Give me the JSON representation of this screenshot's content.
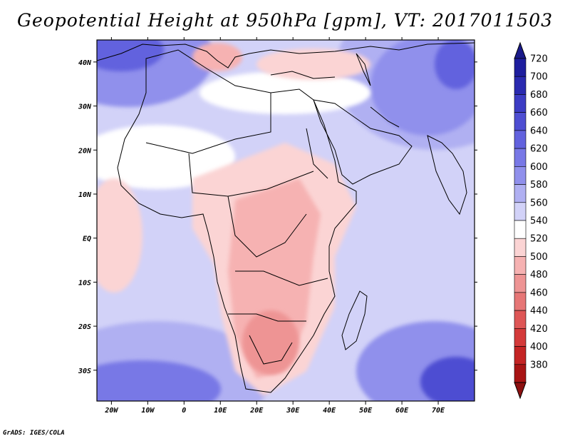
{
  "title": "Geopotential Height at 950hPa [gpm], VT: 2017011503",
  "credit": "GrADS: IGES/COLA",
  "map": {
    "lon_range": [
      -24,
      80
    ],
    "lat_range": [
      -37,
      45
    ],
    "lon_ticks": [
      {
        "value": -20,
        "label": "20W"
      },
      {
        "value": -10,
        "label": "10W"
      },
      {
        "value": 0,
        "label": "0"
      },
      {
        "value": 10,
        "label": "10E"
      },
      {
        "value": 20,
        "label": "20E"
      },
      {
        "value": 30,
        "label": "30E"
      },
      {
        "value": 40,
        "label": "40E"
      },
      {
        "value": 50,
        "label": "50E"
      },
      {
        "value": 60,
        "label": "60E"
      },
      {
        "value": 70,
        "label": "70E"
      }
    ],
    "lat_ticks": [
      {
        "value": 40,
        "label": "40N"
      },
      {
        "value": 30,
        "label": "30N"
      },
      {
        "value": 20,
        "label": "20N"
      },
      {
        "value": 10,
        "label": "10N"
      },
      {
        "value": 0,
        "label": "EQ"
      },
      {
        "value": -10,
        "label": "10S"
      },
      {
        "value": -20,
        "label": "20S"
      },
      {
        "value": -30,
        "label": "30S"
      }
    ]
  },
  "colorbar": {
    "levels": [
      {
        "label": "720",
        "color": "#1e1e9e"
      },
      {
        "label": "700",
        "color": "#2a2ab0"
      },
      {
        "label": "680",
        "color": "#3c3cc4"
      },
      {
        "label": "660",
        "color": "#4e4ed2"
      },
      {
        "label": "640",
        "color": "#6262de"
      },
      {
        "label": "620",
        "color": "#7878e6"
      },
      {
        "label": "600",
        "color": "#9090ec"
      },
      {
        "label": "580",
        "color": "#b0b0f2"
      },
      {
        "label": "560",
        "color": "#d2d2f8"
      },
      {
        "label": "540",
        "color": "#ffffff"
      },
      {
        "label": "520",
        "color": "#fbd4d4"
      },
      {
        "label": "500",
        "color": "#f6b2b2"
      },
      {
        "label": "480",
        "color": "#ee9494"
      },
      {
        "label": "460",
        "color": "#e67676"
      },
      {
        "label": "440",
        "color": "#de5656"
      },
      {
        "label": "420",
        "color": "#d43a3a"
      },
      {
        "label": "400",
        "color": "#c42424"
      },
      {
        "label": "380",
        "color": "#a81414"
      }
    ],
    "top_color": "#1a1a8a",
    "bottom_color": "#8c1010"
  }
}
